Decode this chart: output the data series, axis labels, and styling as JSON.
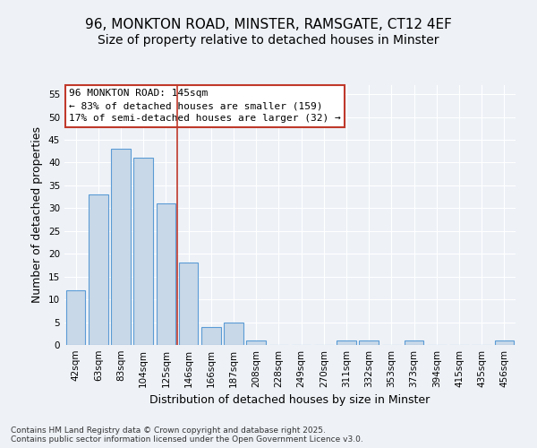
{
  "title_line1": "96, MONKTON ROAD, MINSTER, RAMSGATE, CT12 4EF",
  "title_line2": "Size of property relative to detached houses in Minster",
  "xlabel": "Distribution of detached houses by size in Minster",
  "ylabel": "Number of detached properties",
  "categories": [
    "42sqm",
    "63sqm",
    "83sqm",
    "104sqm",
    "125sqm",
    "146sqm",
    "166sqm",
    "187sqm",
    "208sqm",
    "228sqm",
    "249sqm",
    "270sqm",
    "311sqm",
    "332sqm",
    "353sqm",
    "373sqm",
    "394sqm",
    "415sqm",
    "435sqm",
    "456sqm"
  ],
  "values": [
    12,
    33,
    43,
    41,
    31,
    18,
    4,
    5,
    1,
    0,
    0,
    0,
    1,
    1,
    0,
    1,
    0,
    0,
    0,
    1
  ],
  "bar_color": "#c8d8e8",
  "bar_edge_color": "#5b9bd5",
  "vline_x": 4.5,
  "vline_color": "#c0392b",
  "annotation_text": "96 MONKTON ROAD: 145sqm\n← 83% of detached houses are smaller (159)\n17% of semi-detached houses are larger (32) →",
  "annotation_box_color": "#ffffff",
  "annotation_edge_color": "#c0392b",
  "ylim": [
    0,
    57
  ],
  "yticks": [
    0,
    5,
    10,
    15,
    20,
    25,
    30,
    35,
    40,
    45,
    50,
    55
  ],
  "background_color": "#eef2f7",
  "plot_bg_color": "#eef2f7",
  "footer_text": "Contains HM Land Registry data © Crown copyright and database right 2025.\nContains public sector information licensed under the Open Government Licence v3.0.",
  "title_fontsize": 11,
  "subtitle_fontsize": 10,
  "axis_label_fontsize": 9,
  "tick_fontsize": 7.5,
  "annotation_fontsize": 8
}
